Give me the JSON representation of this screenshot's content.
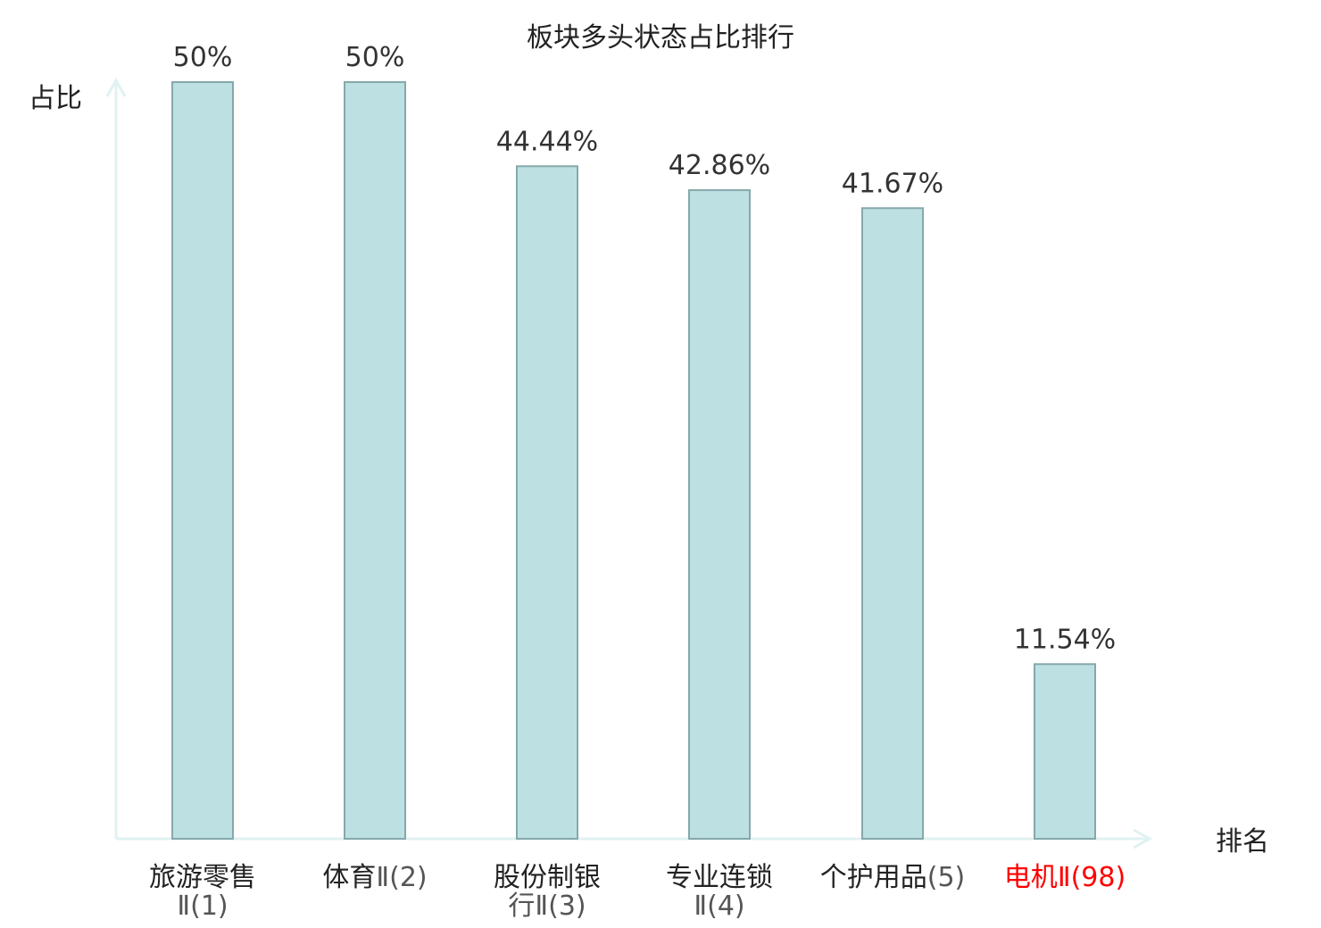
{
  "chart_data": {
    "type": "bar",
    "title": "板块多头状态占比排行",
    "ylabel": "占比",
    "xlabel": "排名",
    "ylim": [
      0,
      50
    ],
    "grid": false,
    "categories": [
      {
        "name": "旅游零售",
        "suffix": "Ⅱ(1)",
        "highlight": false
      },
      {
        "name": "体育",
        "suffix": "Ⅱ(2)",
        "highlight": false
      },
      {
        "name": "股份制银",
        "suffix": "行Ⅱ(3)",
        "highlight": false
      },
      {
        "name": "专业连锁",
        "suffix": "Ⅱ(4)",
        "highlight": false
      },
      {
        "name": "个护用品",
        "suffix": "(5)",
        "highlight": false
      },
      {
        "name": "电机",
        "suffix": "Ⅱ(98)",
        "highlight": true
      }
    ],
    "values": [
      50,
      50,
      44.44,
      42.86,
      41.67,
      11.54
    ],
    "value_labels": [
      "50%",
      "50%",
      "44.44%",
      "42.86%",
      "41.67%",
      "11.54%"
    ],
    "colors": {
      "bar_fill": "#bde1e3",
      "bar_stroke": "#86a8ab",
      "axis": "#e0f2f1",
      "highlight": "#ff0000",
      "text": "#222222"
    }
  }
}
